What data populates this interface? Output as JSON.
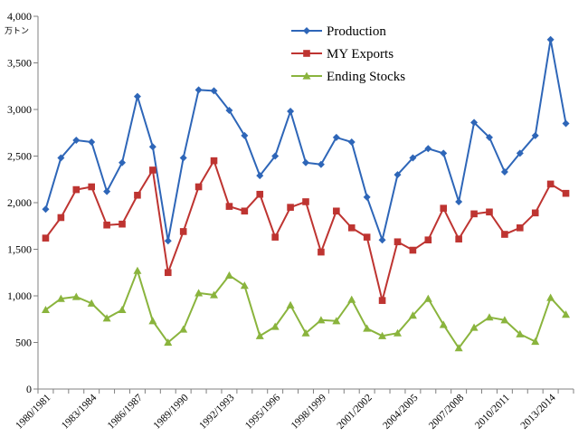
{
  "chart_data": {
    "type": "line",
    "y_unit": "万トン",
    "ylim": [
      0,
      4000
    ],
    "y_ticks": [
      "0",
      "500",
      "1,000",
      "1,500",
      "2,000",
      "2,500",
      "3,000",
      "3,500",
      "4,000"
    ],
    "y_tick_values": [
      0,
      500,
      1000,
      1500,
      2000,
      2500,
      3000,
      3500,
      4000
    ],
    "categories": [
      "1980/1981",
      "1981/1982",
      "1982/1983",
      "1983/1984",
      "1984/1985",
      "1985/1986",
      "1986/1987",
      "1987/1988",
      "1988/1989",
      "1989/1990",
      "1990/1991",
      "1991/1992",
      "1992/1993",
      "1993/1994",
      "1994/1995",
      "1995/1996",
      "1996/1997",
      "1997/1998",
      "1998/1999",
      "1999/2000",
      "2000/2001",
      "2001/2002",
      "2002/2003",
      "2003/2004",
      "2004/2005",
      "2005/2006",
      "2006/2007",
      "2007/2008",
      "2008/2009",
      "2009/2010",
      "2010/2011",
      "2011/2012",
      "2012/2013",
      "2013/2014",
      "2014/2015"
    ],
    "x_tick_labels": [
      "1980/1981",
      "1983/1984",
      "1986/1987",
      "1989/1990",
      "1992/1993",
      "1995/1996",
      "1998/1999",
      "2001/2002",
      "2004/2005",
      "2007/2008",
      "2010/2011",
      "2013/2014"
    ],
    "grid": false,
    "legend_position": "top-right",
    "series": [
      {
        "name": "Production",
        "color": "#2e66b8",
        "marker": "diamond",
        "values": [
          1930,
          2480,
          2670,
          2650,
          2120,
          2430,
          3140,
          2600,
          1590,
          2480,
          3210,
          3200,
          2990,
          2720,
          2290,
          2500,
          2980,
          2430,
          2410,
          2700,
          2650,
          2060,
          1600,
          2300,
          2480,
          2580,
          2530,
          2010,
          2860,
          2700,
          2330,
          2530,
          2720,
          3750,
          2850
        ]
      },
      {
        "name": "MY Exports",
        "color": "#be3431",
        "marker": "square",
        "values": [
          1620,
          1840,
          2140,
          2170,
          1760,
          1770,
          2080,
          2350,
          1250,
          1690,
          2170,
          2450,
          1960,
          1910,
          2090,
          1630,
          1950,
          2010,
          1470,
          1910,
          1730,
          1630,
          950,
          1580,
          1490,
          1600,
          1940,
          1610,
          1880,
          1900,
          1660,
          1730,
          1890,
          2200,
          2100
        ]
      },
      {
        "name": "Ending Stocks",
        "color": "#8ab43d",
        "marker": "triangle",
        "values": [
          850,
          970,
          990,
          920,
          760,
          850,
          1270,
          730,
          500,
          640,
          1030,
          1010,
          1220,
          1110,
          570,
          670,
          900,
          600,
          740,
          730,
          960,
          650,
          570,
          600,
          790,
          970,
          690,
          440,
          660,
          770,
          740,
          590,
          510,
          980,
          800
        ]
      }
    ]
  }
}
